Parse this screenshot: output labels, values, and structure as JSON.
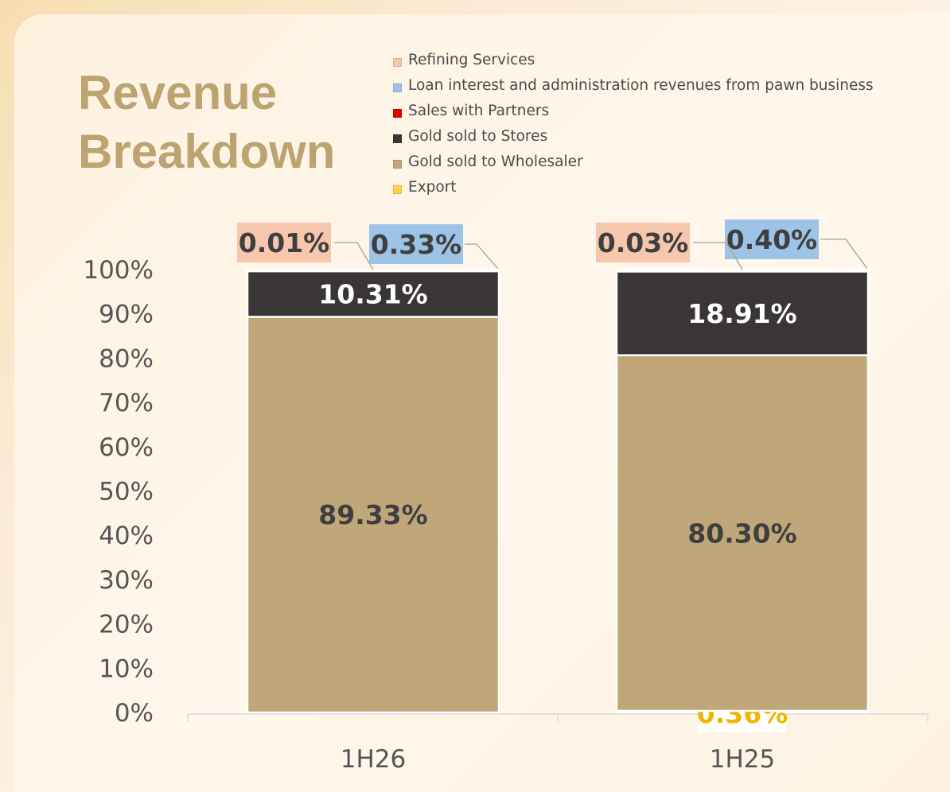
{
  "title_lines": [
    "Revenue",
    "Breakdown"
  ],
  "colors": {
    "title": "#bca36f",
    "axis_text": "#555555",
    "axis_line": "#d9d9d9",
    "leader_line": "#a0a0a0"
  },
  "legend": [
    {
      "label": "Refining Services",
      "color": "#f6c6ad"
    },
    {
      "label": "Loan interest and administration revenues from pawn business",
      "color": "#9dc3e6"
    },
    {
      "label": "Sales with Partners",
      "color": "#e00000"
    },
    {
      "label": "Gold sold to Stores",
      "color": "#3a3636"
    },
    {
      "label": "Gold sold to Wholesaler",
      "color": "#bfa779"
    },
    {
      "label": "Export",
      "color": "#ffd24a"
    }
  ],
  "chart_data": {
    "type": "bar",
    "stacked": true,
    "orientation": "vertical",
    "categories": [
      "1H26",
      "1H25"
    ],
    "ylim": [
      0,
      100
    ],
    "y_ticks": [
      "0%",
      "10%",
      "20%",
      "30%",
      "40%",
      "50%",
      "60%",
      "70%",
      "80%",
      "90%",
      "100%"
    ],
    "grid": false,
    "legend_position": "top",
    "series": [
      {
        "name": "Export",
        "color": "#ffd24a",
        "values": [
          0,
          0.36
        ],
        "labels": [
          "",
          "0.36%"
        ]
      },
      {
        "name": "Gold sold to Wholesaler",
        "color": "#bfa779",
        "values": [
          89.33,
          80.3
        ],
        "labels": [
          "89.33%",
          "80.30%"
        ]
      },
      {
        "name": "Gold sold to Stores",
        "color": "#3a3636",
        "values": [
          10.31,
          18.91
        ],
        "labels": [
          "10.31%",
          "18.91%"
        ]
      },
      {
        "name": "Sales with Partners",
        "color": "#e00000",
        "values": [
          0,
          0
        ],
        "labels": [
          "",
          ""
        ]
      },
      {
        "name": "Loan interest and administration revenues from pawn business",
        "color": "#9dc3e6",
        "values": [
          0.33,
          0.4
        ],
        "labels": [
          "0.33%",
          "0.40%"
        ]
      },
      {
        "name": "Refining Services",
        "color": "#f6c6ad",
        "values": [
          0.01,
          0.03
        ],
        "labels": [
          "0.01%",
          "0.03%"
        ]
      }
    ]
  }
}
